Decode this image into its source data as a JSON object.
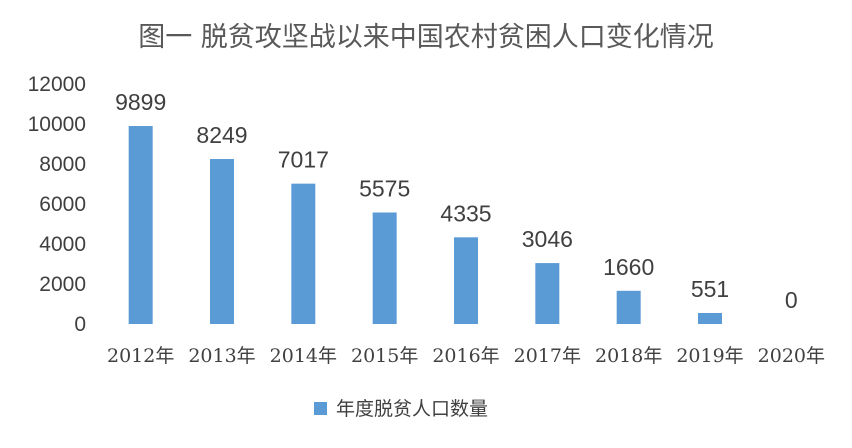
{
  "chart_data": {
    "type": "bar",
    "title": "图一 脱贫攻坚战以来中国农村贫困人口变化情况",
    "categories": [
      "2012年",
      "2013年",
      "2014年",
      "2015年",
      "2016年",
      "2017年",
      "2018年",
      "2019年",
      "2020年"
    ],
    "series": [
      {
        "name": "年度脱贫人口数量",
        "values": [
          9899,
          8249,
          7017,
          5575,
          4335,
          3046,
          1660,
          551,
          0
        ]
      }
    ],
    "ylim": [
      0,
      12000
    ],
    "yticks": [
      "0",
      "2000",
      "4000",
      "6000",
      "8000",
      "10000",
      "12000"
    ],
    "xlabel": "",
    "ylabel": "",
    "grid": false,
    "legend_position": "bottom",
    "bar_color": "#5B9BD5"
  }
}
